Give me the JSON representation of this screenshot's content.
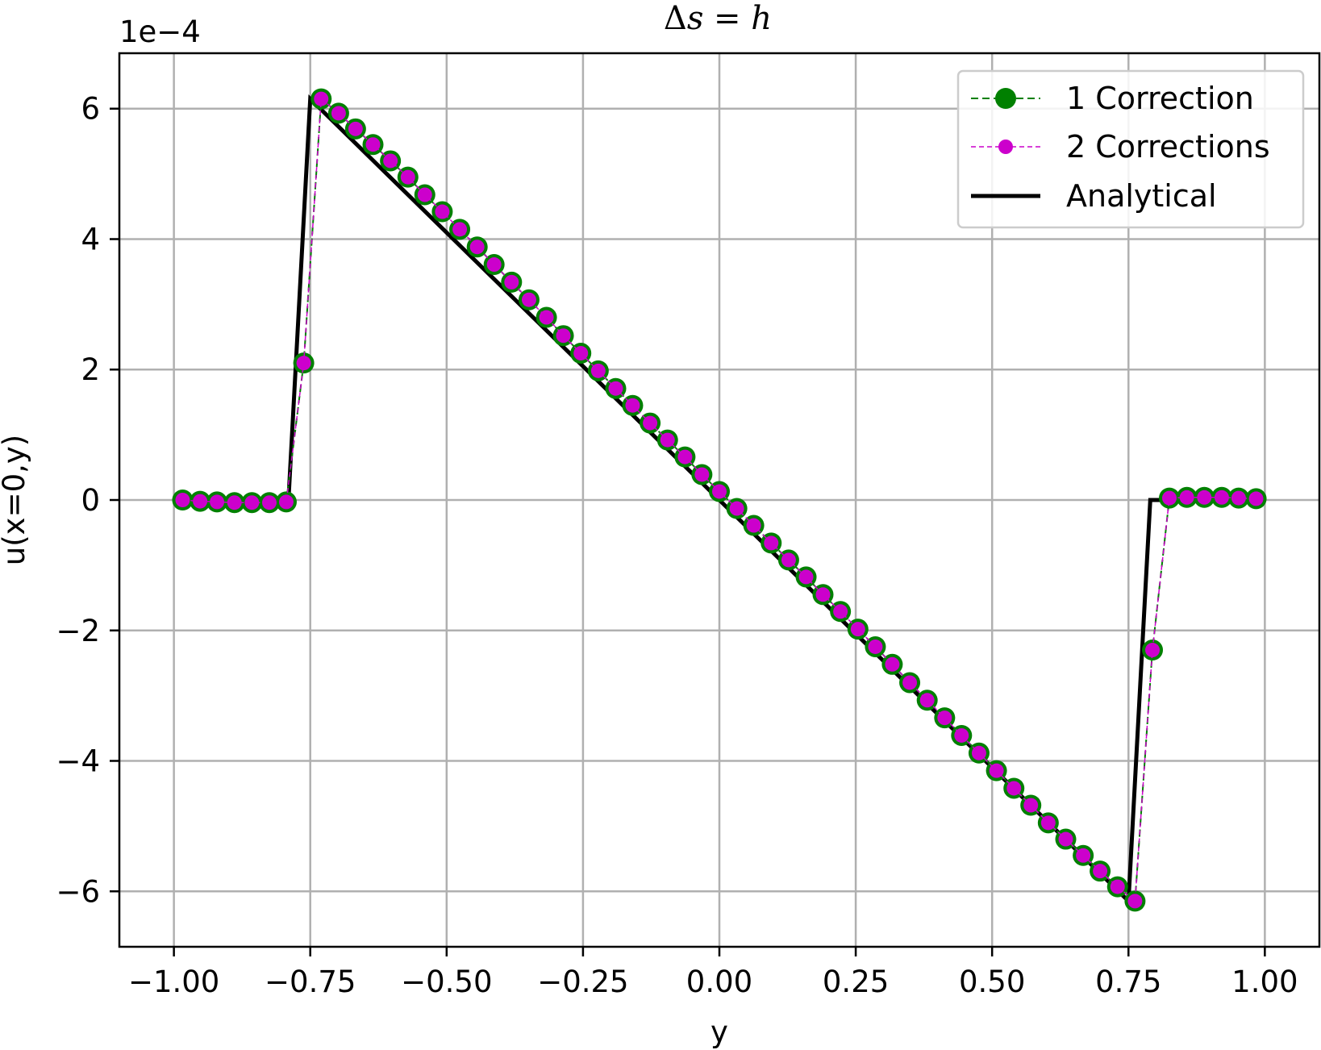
{
  "chart_data": {
    "type": "line",
    "title": {
      "delta": "Δ",
      "var": "s",
      "eq": " = ",
      "rhs": "h"
    },
    "xlabel": "y",
    "ylabel": "u(x=0,y)",
    "y_offset_label": "1e−4",
    "xlim": [
      -1.1,
      1.1
    ],
    "ylim": [
      -6.85,
      6.85
    ],
    "xticks": [
      -1.0,
      -0.75,
      -0.5,
      -0.25,
      0.0,
      0.25,
      0.5,
      0.75,
      1.0
    ],
    "xtick_labels": [
      "−1.00",
      "−0.75",
      "−0.50",
      "−0.25",
      "0.00",
      "0.25",
      "0.50",
      "0.75",
      "1.00"
    ],
    "yticks": [
      -6,
      -4,
      -2,
      0,
      2,
      4,
      6
    ],
    "ytick_labels": [
      "−6",
      "−4",
      "−2",
      "0",
      "2",
      "4",
      "6"
    ],
    "grid": true,
    "legend_position": "top-right",
    "colors": {
      "one_correction": "#008000",
      "two_corrections": "#cc00cc",
      "analytical": "#000000",
      "grid": "#b0b0b0"
    },
    "x": [
      -0.984,
      -0.952,
      -0.921,
      -0.889,
      -0.857,
      -0.825,
      -0.794,
      -0.762,
      -0.73,
      -0.698,
      -0.667,
      -0.635,
      -0.603,
      -0.571,
      -0.54,
      -0.508,
      -0.476,
      -0.444,
      -0.413,
      -0.381,
      -0.349,
      -0.317,
      -0.286,
      -0.254,
      -0.222,
      -0.19,
      -0.159,
      -0.127,
      -0.095,
      -0.063,
      -0.032,
      0.0,
      0.032,
      0.063,
      0.095,
      0.127,
      0.159,
      0.19,
      0.222,
      0.254,
      0.286,
      0.317,
      0.349,
      0.381,
      0.413,
      0.444,
      0.476,
      0.508,
      0.54,
      0.571,
      0.603,
      0.635,
      0.667,
      0.698,
      0.73,
      0.762,
      0.794,
      0.825,
      0.857,
      0.889,
      0.921,
      0.952,
      0.984
    ],
    "series": [
      {
        "name": "1 Correction",
        "style": "dashed-markers",
        "values": [
          0.0,
          -0.02,
          -0.03,
          -0.04,
          -0.04,
          -0.04,
          -0.03,
          2.1,
          6.15,
          5.93,
          5.69,
          5.45,
          5.2,
          4.95,
          4.68,
          4.42,
          4.15,
          3.88,
          3.61,
          3.34,
          3.07,
          2.8,
          2.52,
          2.25,
          1.98,
          1.71,
          1.45,
          1.18,
          0.92,
          0.66,
          0.39,
          0.13,
          -0.13,
          -0.39,
          -0.66,
          -0.92,
          -1.18,
          -1.45,
          -1.71,
          -1.98,
          -2.25,
          -2.52,
          -2.8,
          -3.07,
          -3.34,
          -3.61,
          -3.88,
          -4.15,
          -4.42,
          -4.68,
          -4.95,
          -5.2,
          -5.45,
          -5.69,
          -5.93,
          -6.15,
          -2.3,
          0.03,
          0.04,
          0.04,
          0.04,
          0.03,
          0.02
        ]
      },
      {
        "name": "2 Corrections",
        "style": "dashed-markers",
        "values": [
          0.0,
          -0.02,
          -0.03,
          -0.04,
          -0.04,
          -0.04,
          -0.03,
          2.1,
          6.15,
          5.93,
          5.69,
          5.45,
          5.2,
          4.95,
          4.68,
          4.42,
          4.15,
          3.88,
          3.61,
          3.34,
          3.07,
          2.8,
          2.52,
          2.25,
          1.98,
          1.71,
          1.45,
          1.18,
          0.92,
          0.66,
          0.39,
          0.13,
          -0.13,
          -0.39,
          -0.66,
          -0.92,
          -1.18,
          -1.45,
          -1.71,
          -1.98,
          -2.25,
          -2.52,
          -2.8,
          -3.07,
          -3.34,
          -3.61,
          -3.88,
          -4.15,
          -4.42,
          -4.68,
          -4.95,
          -5.2,
          -5.45,
          -5.69,
          -5.93,
          -6.15,
          -2.3,
          0.03,
          0.04,
          0.04,
          0.04,
          0.03,
          0.02
        ]
      },
      {
        "name": "Analytical",
        "style": "solid",
        "x": [
          -0.984,
          -0.79,
          -0.75,
          -0.75,
          0.75,
          0.75,
          0.79,
          0.984
        ],
        "values": [
          0.0,
          0.0,
          6.15,
          6.15,
          -6.15,
          -6.15,
          0.0,
          0.0
        ]
      }
    ]
  }
}
